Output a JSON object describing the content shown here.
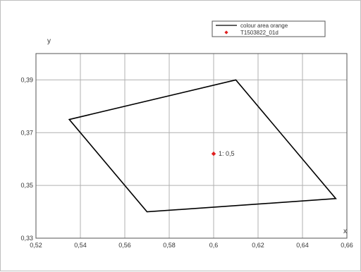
{
  "chart_data": {
    "type": "scatter",
    "title": "",
    "xlabel": "x",
    "ylabel": "y",
    "xlim": [
      0.52,
      0.66
    ],
    "ylim": [
      0.33,
      0.4
    ],
    "x_ticks": [
      0.52,
      0.54,
      0.56,
      0.58,
      0.6,
      0.62,
      0.64,
      0.66
    ],
    "x_tick_labels": [
      "0,52",
      "0,54",
      "0,56",
      "0,58",
      "0,6",
      "0,62",
      "0,64",
      "0,66"
    ],
    "y_ticks": [
      0.33,
      0.35,
      0.37,
      0.39
    ],
    "y_tick_labels": [
      "0,33",
      "0,35",
      "0,37",
      "0,39"
    ],
    "grid": true,
    "legend_position": "top-right",
    "series": [
      {
        "name": "colour area orange",
        "kind": "polygon",
        "color": "#000000",
        "points": [
          {
            "x": 0.535,
            "y": 0.375
          },
          {
            "x": 0.61,
            "y": 0.39
          },
          {
            "x": 0.655,
            "y": 0.345
          },
          {
            "x": 0.57,
            "y": 0.34
          }
        ]
      },
      {
        "name": "T1503822_01d",
        "kind": "point",
        "color": "#e02020",
        "points": [
          {
            "x": 0.6,
            "y": 0.362,
            "label": "1: 0,5"
          }
        ]
      }
    ]
  }
}
